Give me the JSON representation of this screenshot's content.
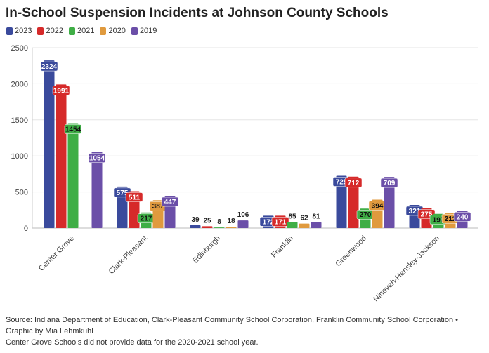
{
  "chart_data": {
    "type": "bar",
    "title": "In-School Suspension Incidents at Johnson County Schools",
    "categories": [
      "Center Grove",
      "Clark-Pleasant",
      "Edinburgh",
      "Franklin",
      "Greenwood",
      "Nineveh-Hensley-Jackson"
    ],
    "series": [
      {
        "name": "2023",
        "color": "#3a4a9c",
        "values": [
          2324,
          575,
          39,
          172,
          725,
          321
        ]
      },
      {
        "name": "2022",
        "color": "#d62a2a",
        "values": [
          1991,
          511,
          25,
          171,
          712,
          275
        ]
      },
      {
        "name": "2021",
        "color": "#3fae46",
        "values": [
          1454,
          217,
          8,
          85,
          270,
          197
        ]
      },
      {
        "name": "2020",
        "color": "#e09a3e",
        "values": [
          null,
          387,
          18,
          62,
          394,
          212
        ]
      },
      {
        "name": "2019",
        "color": "#6b4fa8",
        "values": [
          1054,
          447,
          106,
          81,
          709,
          240
        ]
      }
    ],
    "ylim": [
      0,
      2500
    ],
    "yticks": [
      0,
      500,
      1000,
      1500,
      2000,
      2500
    ],
    "grid": true,
    "legend": "top-left"
  },
  "notes": {
    "source": "Source: Indiana Department of Education, Clark-Pleasant Community School Corporation, Franklin Community School Corporation •",
    "credit": "Graphic by Mia Lehmkuhl",
    "footnote": "Center Grove Schools did not provide data for the 2020-2021 school year."
  }
}
